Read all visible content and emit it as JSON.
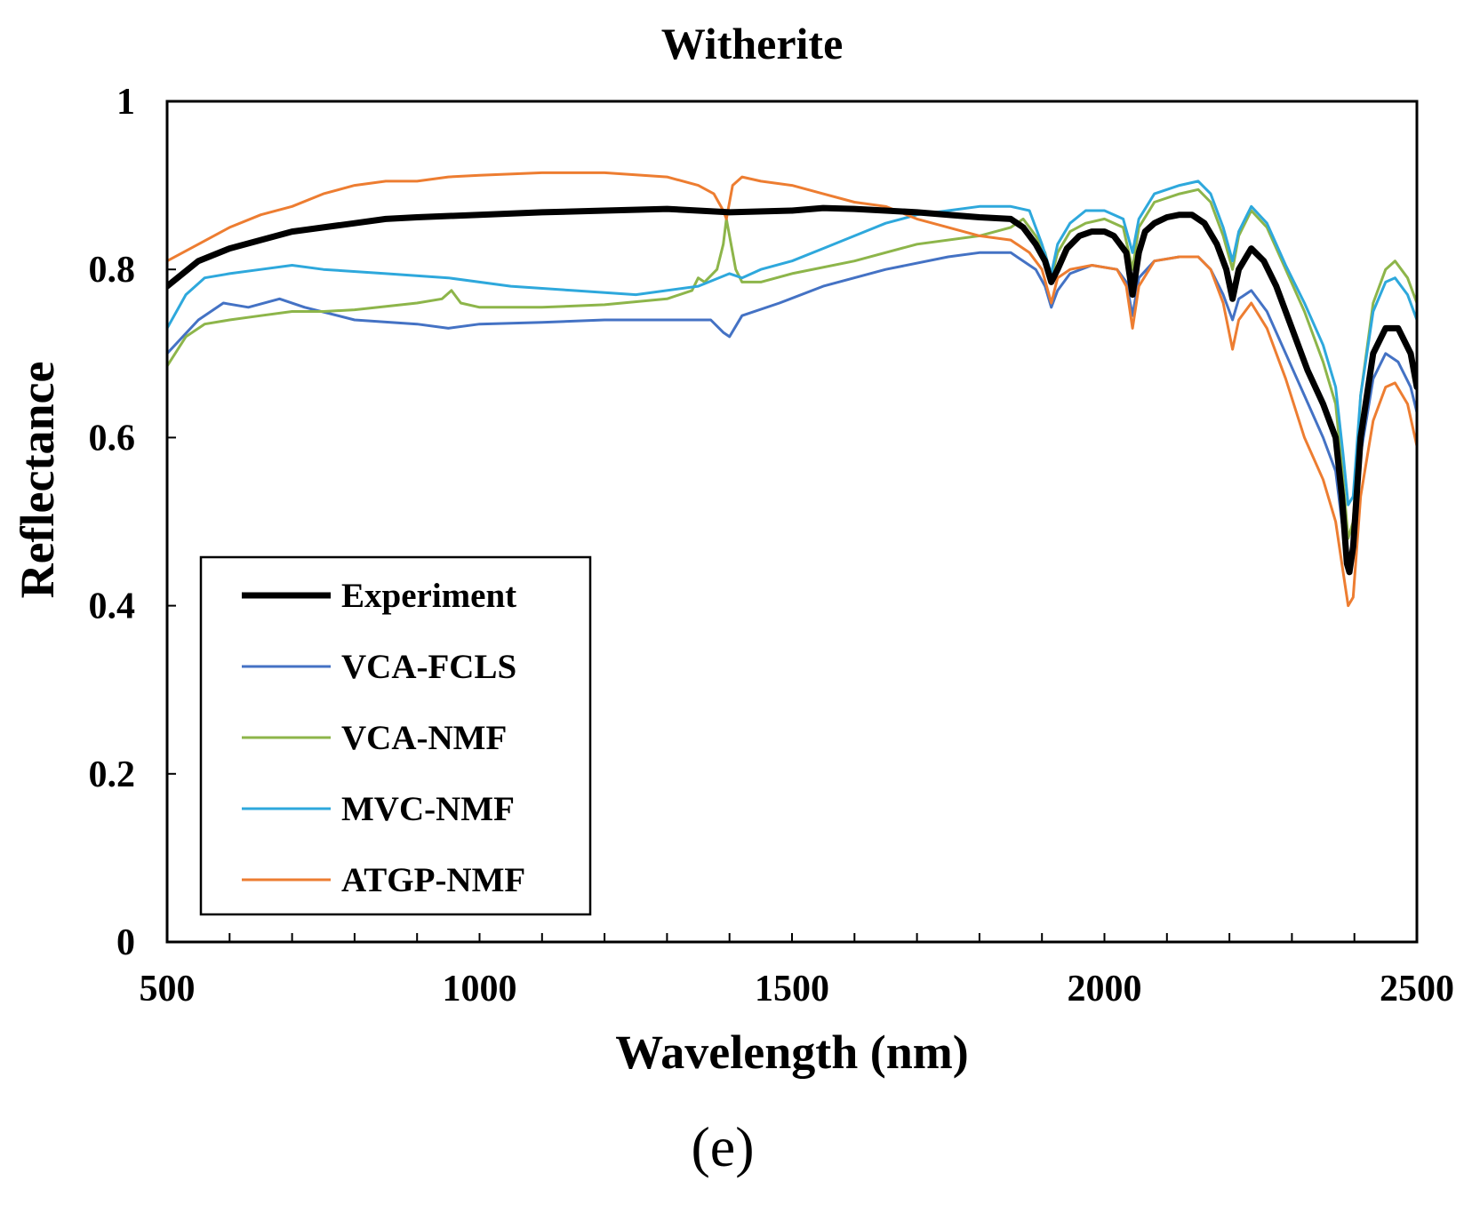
{
  "chart_data": {
    "type": "line",
    "title": "Witherite",
    "xlabel": "Wavelength (nm)",
    "ylabel": "Reflectance",
    "panel_label": "(e)",
    "xlim": [
      500,
      2500
    ],
    "ylim": [
      0,
      1
    ],
    "x_ticks": [
      500,
      1000,
      1500,
      2000,
      2500
    ],
    "y_ticks": [
      0,
      0.2,
      0.4,
      0.6,
      0.8,
      1
    ],
    "y_tick_labels": [
      "0",
      "0.2",
      "0.4",
      "0.6",
      "0.8",
      "1"
    ],
    "legend_position": "lower-left",
    "series": [
      {
        "name": "Experiment",
        "color": "#000000",
        "width": 7,
        "points": [
          [
            500,
            0.78
          ],
          [
            550,
            0.81
          ],
          [
            600,
            0.825
          ],
          [
            650,
            0.835
          ],
          [
            700,
            0.845
          ],
          [
            750,
            0.85
          ],
          [
            800,
            0.855
          ],
          [
            850,
            0.86
          ],
          [
            900,
            0.862
          ],
          [
            1000,
            0.865
          ],
          [
            1100,
            0.868
          ],
          [
            1200,
            0.87
          ],
          [
            1300,
            0.872
          ],
          [
            1400,
            0.868
          ],
          [
            1500,
            0.87
          ],
          [
            1550,
            0.873
          ],
          [
            1600,
            0.872
          ],
          [
            1650,
            0.87
          ],
          [
            1700,
            0.868
          ],
          [
            1750,
            0.865
          ],
          [
            1800,
            0.862
          ],
          [
            1850,
            0.86
          ],
          [
            1870,
            0.85
          ],
          [
            1890,
            0.83
          ],
          [
            1905,
            0.81
          ],
          [
            1915,
            0.785
          ],
          [
            1925,
            0.8
          ],
          [
            1940,
            0.825
          ],
          [
            1960,
            0.84
          ],
          [
            1980,
            0.845
          ],
          [
            2000,
            0.845
          ],
          [
            2015,
            0.84
          ],
          [
            2025,
            0.83
          ],
          [
            2035,
            0.82
          ],
          [
            2045,
            0.77
          ],
          [
            2055,
            0.82
          ],
          [
            2065,
            0.845
          ],
          [
            2080,
            0.855
          ],
          [
            2100,
            0.862
          ],
          [
            2120,
            0.865
          ],
          [
            2140,
            0.865
          ],
          [
            2160,
            0.855
          ],
          [
            2180,
            0.83
          ],
          [
            2195,
            0.8
          ],
          [
            2205,
            0.765
          ],
          [
            2215,
            0.8
          ],
          [
            2235,
            0.825
          ],
          [
            2255,
            0.81
          ],
          [
            2275,
            0.78
          ],
          [
            2300,
            0.73
          ],
          [
            2325,
            0.68
          ],
          [
            2350,
            0.64
          ],
          [
            2370,
            0.6
          ],
          [
            2380,
            0.53
          ],
          [
            2388,
            0.45
          ],
          [
            2392,
            0.44
          ],
          [
            2398,
            0.47
          ],
          [
            2410,
            0.6
          ],
          [
            2430,
            0.7
          ],
          [
            2450,
            0.73
          ],
          [
            2470,
            0.73
          ],
          [
            2490,
            0.7
          ],
          [
            2500,
            0.66
          ]
        ]
      },
      {
        "name": "VCA-FCLS",
        "color": "#4472c4",
        "width": 3,
        "points": [
          [
            500,
            0.7
          ],
          [
            550,
            0.74
          ],
          [
            590,
            0.76
          ],
          [
            630,
            0.755
          ],
          [
            680,
            0.765
          ],
          [
            720,
            0.755
          ],
          [
            800,
            0.74
          ],
          [
            900,
            0.735
          ],
          [
            950,
            0.73
          ],
          [
            1000,
            0.735
          ],
          [
            1100,
            0.737
          ],
          [
            1200,
            0.74
          ],
          [
            1300,
            0.74
          ],
          [
            1370,
            0.74
          ],
          [
            1390,
            0.725
          ],
          [
            1400,
            0.72
          ],
          [
            1420,
            0.745
          ],
          [
            1480,
            0.76
          ],
          [
            1550,
            0.78
          ],
          [
            1650,
            0.8
          ],
          [
            1750,
            0.815
          ],
          [
            1800,
            0.82
          ],
          [
            1850,
            0.82
          ],
          [
            1870,
            0.81
          ],
          [
            1890,
            0.8
          ],
          [
            1905,
            0.78
          ],
          [
            1915,
            0.755
          ],
          [
            1925,
            0.775
          ],
          [
            1945,
            0.795
          ],
          [
            1980,
            0.805
          ],
          [
            2020,
            0.8
          ],
          [
            2035,
            0.785
          ],
          [
            2045,
            0.745
          ],
          [
            2055,
            0.79
          ],
          [
            2080,
            0.81
          ],
          [
            2120,
            0.815
          ],
          [
            2150,
            0.815
          ],
          [
            2170,
            0.8
          ],
          [
            2190,
            0.77
          ],
          [
            2205,
            0.74
          ],
          [
            2215,
            0.765
          ],
          [
            2235,
            0.775
          ],
          [
            2260,
            0.75
          ],
          [
            2290,
            0.7
          ],
          [
            2320,
            0.65
          ],
          [
            2350,
            0.6
          ],
          [
            2370,
            0.56
          ],
          [
            2380,
            0.5
          ],
          [
            2390,
            0.44
          ],
          [
            2398,
            0.46
          ],
          [
            2410,
            0.58
          ],
          [
            2430,
            0.67
          ],
          [
            2450,
            0.7
          ],
          [
            2470,
            0.69
          ],
          [
            2490,
            0.66
          ],
          [
            2500,
            0.63
          ]
        ]
      },
      {
        "name": "VCA-NMF",
        "color": "#8db54a",
        "width": 3,
        "points": [
          [
            500,
            0.685
          ],
          [
            530,
            0.72
          ],
          [
            560,
            0.735
          ],
          [
            600,
            0.74
          ],
          [
            650,
            0.745
          ],
          [
            700,
            0.75
          ],
          [
            750,
            0.75
          ],
          [
            800,
            0.752
          ],
          [
            900,
            0.76
          ],
          [
            940,
            0.765
          ],
          [
            955,
            0.775
          ],
          [
            970,
            0.76
          ],
          [
            1000,
            0.755
          ],
          [
            1100,
            0.755
          ],
          [
            1200,
            0.758
          ],
          [
            1300,
            0.765
          ],
          [
            1340,
            0.775
          ],
          [
            1350,
            0.79
          ],
          [
            1360,
            0.785
          ],
          [
            1380,
            0.8
          ],
          [
            1390,
            0.83
          ],
          [
            1395,
            0.86
          ],
          [
            1400,
            0.84
          ],
          [
            1410,
            0.8
          ],
          [
            1420,
            0.785
          ],
          [
            1450,
            0.785
          ],
          [
            1500,
            0.795
          ],
          [
            1600,
            0.81
          ],
          [
            1700,
            0.83
          ],
          [
            1800,
            0.84
          ],
          [
            1850,
            0.85
          ],
          [
            1870,
            0.86
          ],
          [
            1890,
            0.84
          ],
          [
            1905,
            0.82
          ],
          [
            1915,
            0.79
          ],
          [
            1925,
            0.82
          ],
          [
            1945,
            0.845
          ],
          [
            1970,
            0.855
          ],
          [
            2000,
            0.86
          ],
          [
            2030,
            0.85
          ],
          [
            2045,
            0.8
          ],
          [
            2055,
            0.85
          ],
          [
            2080,
            0.88
          ],
          [
            2120,
            0.89
          ],
          [
            2150,
            0.895
          ],
          [
            2170,
            0.88
          ],
          [
            2190,
            0.84
          ],
          [
            2205,
            0.8
          ],
          [
            2215,
            0.84
          ],
          [
            2235,
            0.87
          ],
          [
            2260,
            0.85
          ],
          [
            2290,
            0.8
          ],
          [
            2320,
            0.75
          ],
          [
            2350,
            0.69
          ],
          [
            2370,
            0.64
          ],
          [
            2382,
            0.55
          ],
          [
            2390,
            0.48
          ],
          [
            2398,
            0.5
          ],
          [
            2410,
            0.65
          ],
          [
            2430,
            0.76
          ],
          [
            2450,
            0.8
          ],
          [
            2465,
            0.81
          ],
          [
            2485,
            0.79
          ],
          [
            2500,
            0.76
          ]
        ]
      },
      {
        "name": "MVC-NMF",
        "color": "#2ea8dc",
        "width": 3,
        "points": [
          [
            500,
            0.73
          ],
          [
            530,
            0.77
          ],
          [
            560,
            0.79
          ],
          [
            600,
            0.795
          ],
          [
            650,
            0.8
          ],
          [
            700,
            0.805
          ],
          [
            750,
            0.8
          ],
          [
            850,
            0.795
          ],
          [
            950,
            0.79
          ],
          [
            1050,
            0.78
          ],
          [
            1150,
            0.775
          ],
          [
            1250,
            0.77
          ],
          [
            1350,
            0.78
          ],
          [
            1400,
            0.795
          ],
          [
            1420,
            0.79
          ],
          [
            1450,
            0.8
          ],
          [
            1500,
            0.81
          ],
          [
            1550,
            0.825
          ],
          [
            1600,
            0.84
          ],
          [
            1650,
            0.855
          ],
          [
            1700,
            0.865
          ],
          [
            1750,
            0.87
          ],
          [
            1800,
            0.875
          ],
          [
            1850,
            0.875
          ],
          [
            1880,
            0.87
          ],
          [
            1900,
            0.83
          ],
          [
            1915,
            0.795
          ],
          [
            1925,
            0.83
          ],
          [
            1945,
            0.855
          ],
          [
            1970,
            0.87
          ],
          [
            2000,
            0.87
          ],
          [
            2030,
            0.86
          ],
          [
            2045,
            0.82
          ],
          [
            2055,
            0.86
          ],
          [
            2080,
            0.89
          ],
          [
            2120,
            0.9
          ],
          [
            2150,
            0.905
          ],
          [
            2170,
            0.89
          ],
          [
            2190,
            0.85
          ],
          [
            2205,
            0.81
          ],
          [
            2215,
            0.845
          ],
          [
            2235,
            0.875
          ],
          [
            2260,
            0.855
          ],
          [
            2290,
            0.805
          ],
          [
            2320,
            0.76
          ],
          [
            2350,
            0.71
          ],
          [
            2370,
            0.66
          ],
          [
            2382,
            0.58
          ],
          [
            2390,
            0.52
          ],
          [
            2398,
            0.53
          ],
          [
            2410,
            0.65
          ],
          [
            2430,
            0.75
          ],
          [
            2450,
            0.785
          ],
          [
            2465,
            0.79
          ],
          [
            2485,
            0.77
          ],
          [
            2500,
            0.74
          ]
        ]
      },
      {
        "name": "ATGP-NMF",
        "color": "#ed7d31",
        "width": 3,
        "points": [
          [
            500,
            0.81
          ],
          [
            550,
            0.83
          ],
          [
            600,
            0.85
          ],
          [
            650,
            0.865
          ],
          [
            700,
            0.875
          ],
          [
            750,
            0.89
          ],
          [
            800,
            0.9
          ],
          [
            850,
            0.905
          ],
          [
            900,
            0.905
          ],
          [
            950,
            0.91
          ],
          [
            1000,
            0.912
          ],
          [
            1100,
            0.915
          ],
          [
            1200,
            0.915
          ],
          [
            1300,
            0.91
          ],
          [
            1350,
            0.9
          ],
          [
            1375,
            0.89
          ],
          [
            1390,
            0.87
          ],
          [
            1395,
            0.86
          ],
          [
            1405,
            0.9
          ],
          [
            1420,
            0.91
          ],
          [
            1450,
            0.905
          ],
          [
            1500,
            0.9
          ],
          [
            1550,
            0.89
          ],
          [
            1600,
            0.88
          ],
          [
            1650,
            0.875
          ],
          [
            1700,
            0.86
          ],
          [
            1750,
            0.85
          ],
          [
            1800,
            0.84
          ],
          [
            1850,
            0.835
          ],
          [
            1880,
            0.82
          ],
          [
            1900,
            0.8
          ],
          [
            1915,
            0.76
          ],
          [
            1925,
            0.79
          ],
          [
            1945,
            0.8
          ],
          [
            1980,
            0.805
          ],
          [
            2020,
            0.8
          ],
          [
            2035,
            0.78
          ],
          [
            2045,
            0.73
          ],
          [
            2055,
            0.78
          ],
          [
            2080,
            0.81
          ],
          [
            2120,
            0.815
          ],
          [
            2150,
            0.815
          ],
          [
            2170,
            0.8
          ],
          [
            2190,
            0.76
          ],
          [
            2205,
            0.705
          ],
          [
            2215,
            0.74
          ],
          [
            2235,
            0.76
          ],
          [
            2260,
            0.73
          ],
          [
            2290,
            0.67
          ],
          [
            2320,
            0.6
          ],
          [
            2350,
            0.55
          ],
          [
            2370,
            0.5
          ],
          [
            2380,
            0.45
          ],
          [
            2390,
            0.4
          ],
          [
            2398,
            0.41
          ],
          [
            2410,
            0.53
          ],
          [
            2430,
            0.62
          ],
          [
            2450,
            0.66
          ],
          [
            2465,
            0.665
          ],
          [
            2485,
            0.64
          ],
          [
            2500,
            0.59
          ]
        ]
      }
    ]
  }
}
